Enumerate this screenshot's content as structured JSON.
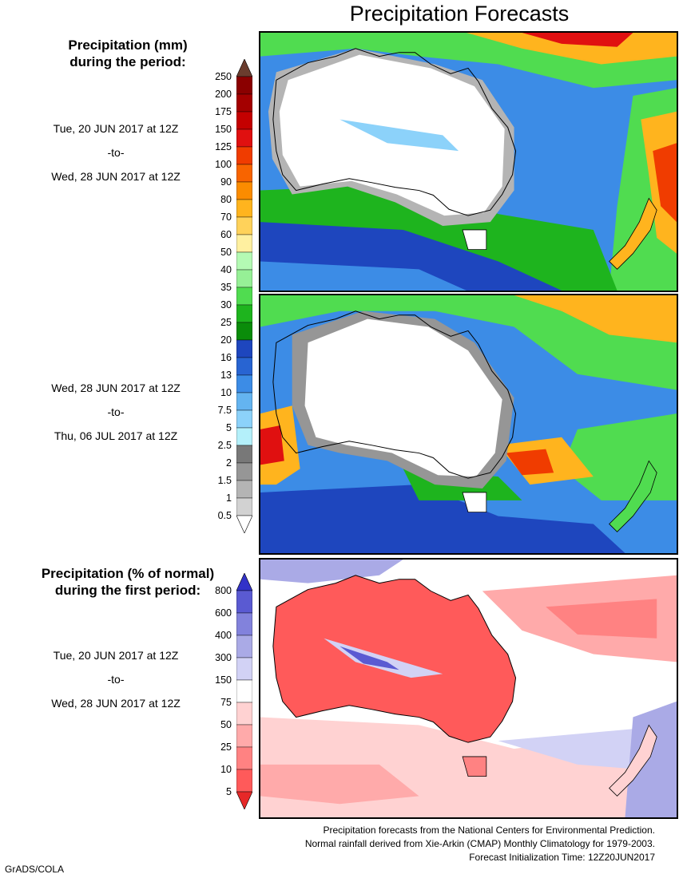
{
  "title": "Precipitation Forecasts",
  "amount_header": [
    "Precipitation (mm)",
    "during the period:"
  ],
  "pct_header": [
    "Precipitation (% of normal)",
    "during the first period:"
  ],
  "period1": {
    "start": "Tue, 20 JUN 2017 at 12Z",
    "sep": "-to-",
    "end": "Wed, 28 JUN 2017 at 12Z"
  },
  "period2": {
    "start": "Wed, 28 JUN 2017 at 12Z",
    "sep": "-to-",
    "end": "Thu, 06 JUL 2017 at 12Z"
  },
  "period3": {
    "start": "Tue, 20 JUN 2017 at 12Z",
    "sep": "-to-",
    "end": "Wed, 28 JUN 2017 at 12Z"
  },
  "amount_colorbar": {
    "labels": [
      "250",
      "200",
      "175",
      "150",
      "125",
      "100",
      "90",
      "80",
      "70",
      "60",
      "50",
      "40",
      "35",
      "30",
      "25",
      "20",
      "16",
      "13",
      "10",
      "7.5",
      "5",
      "2.5",
      "2",
      "1.5",
      "1",
      "0.5"
    ],
    "colors": [
      "#6b3d2e",
      "#8b0000",
      "#a40000",
      "#c40000",
      "#e01010",
      "#f03c00",
      "#f86400",
      "#fb8c00",
      "#ffb41e",
      "#ffd25a",
      "#fff0a0",
      "#b4fab4",
      "#96f096",
      "#50dc50",
      "#1eb41e",
      "#0a8c0a",
      "#1e46be",
      "#2864d2",
      "#3c8ce6",
      "#64b4f0",
      "#8cd2fa",
      "#b4f0fa",
      "#787878",
      "#969696",
      "#b4b4b4",
      "#d2d2d2",
      "#ffffff"
    ]
  },
  "pct_colorbar": {
    "labels": [
      "800",
      "600",
      "400",
      "300",
      "150",
      "75",
      "50",
      "25",
      "10",
      "5"
    ],
    "colors": [
      "#3232c8",
      "#5a5ad2",
      "#8282dc",
      "#aaaae6",
      "#d2d2f5",
      "#ffffff",
      "#ffd2d2",
      "#ffaaaa",
      "#ff8282",
      "#ff5a5a",
      "#e62828"
    ]
  },
  "footer": [
    "Precipitation forecasts from the National Centers for Environmental Prediction.",
    "Normal rainfall derived from Xie-Arkin (CMAP) Monthly Climatology for 1979-2003.",
    "Forecast Initialization Time: 12Z20JUN2017"
  ],
  "credit": "GrADS/COLA"
}
